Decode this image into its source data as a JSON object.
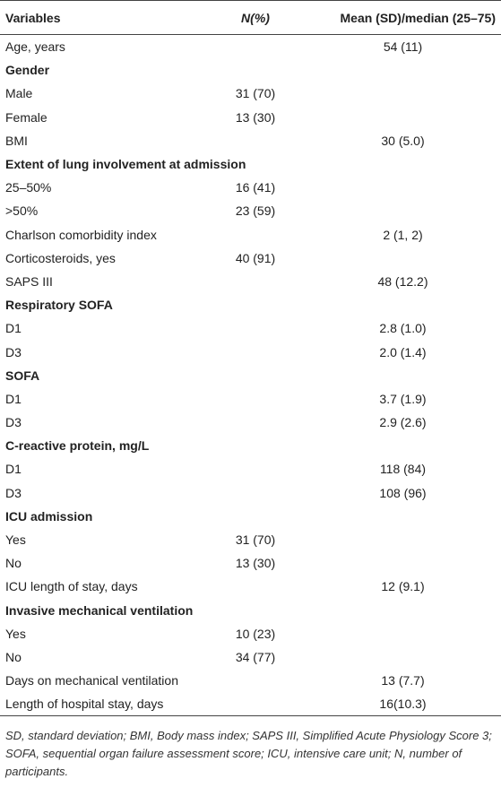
{
  "table": {
    "header": [
      "Variables",
      "N(%)",
      "Mean (SD)/median (25–75)"
    ],
    "rows": [
      [
        "Age, years",
        "",
        "54 (11)"
      ],
      [
        "Gender"
      ],
      [
        "Male",
        "31 (70)",
        ""
      ],
      [
        "Female",
        "13 (30)",
        ""
      ],
      [
        "BMI",
        "",
        "30 (5.0)"
      ],
      [
        "Extent of lung involvement at admission"
      ],
      [
        "25–50%",
        "16 (41)",
        ""
      ],
      [
        ">50%",
        "23 (59)",
        ""
      ],
      [
        "Charlson comorbidity index",
        "",
        "2 (1, 2)"
      ],
      [
        "Corticosteroids, yes",
        "40 (91)",
        ""
      ],
      [
        "SAPS III",
        "",
        "48 (12.2)"
      ],
      [
        "Respiratory SOFA"
      ],
      [
        "D1",
        "",
        "2.8 (1.0)"
      ],
      [
        "D3",
        "",
        "2.0 (1.4)"
      ],
      [
        "SOFA"
      ],
      [
        "D1",
        "",
        "3.7 (1.9)"
      ],
      [
        "D3",
        "",
        "2.9 (2.6)"
      ],
      [
        "C-reactive protein, mg/L"
      ],
      [
        "D1",
        "",
        "118 (84)"
      ],
      [
        "D3",
        "",
        "108 (96)"
      ],
      [
        "ICU admission"
      ],
      [
        "Yes",
        "31 (70)",
        ""
      ],
      [
        "No",
        "13 (30)",
        ""
      ],
      [
        "ICU length of stay, days",
        "",
        "12 (9.1)"
      ],
      [
        "Invasive mechanical ventilation"
      ],
      [
        "Yes",
        "10 (23)",
        ""
      ],
      [
        "No",
        "34 (77)",
        ""
      ],
      [
        "Days on mechanical ventilation",
        "",
        "13 (7.7)"
      ],
      [
        "Length of hospital stay, days",
        "",
        "16(10.3)"
      ]
    ],
    "footnote": "SD, standard deviation; BMI, Body mass index; SAPS III, Simplified Acute Physiology Score 3; SOFA, sequential organ failure assessment score; ICU, intensive care unit; N, number of participants."
  }
}
